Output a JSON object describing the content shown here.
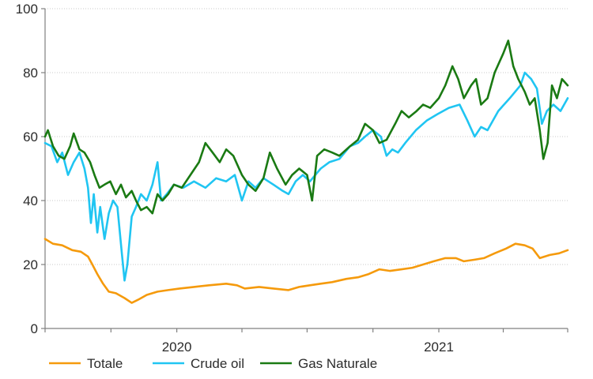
{
  "chart_data": {
    "type": "line",
    "title": "",
    "xlabel": "",
    "ylabel": "",
    "ylim": [
      0,
      100
    ],
    "yticks": [
      0,
      20,
      40,
      60,
      80,
      100
    ],
    "xlim": [
      "2019-07-01",
      "2021-06-30"
    ],
    "x_tick_labels": [
      {
        "label": "2020",
        "date": "2020-01-01"
      },
      {
        "label": "2021",
        "date": "2021-01-01"
      }
    ],
    "x_tick_marks": [
      "2019-07-01",
      "2019-10-01",
      "2020-01-01",
      "2020-04-01",
      "2020-07-01",
      "2020-10-01",
      "2021-01-01",
      "2021-04-01",
      "2021-06-30"
    ],
    "grid": {
      "horizontal": true,
      "vertical": false,
      "style": "dotted"
    },
    "legend": {
      "position": "bottom-left"
    },
    "series": [
      {
        "name": "Totale",
        "color": "#f59a0c",
        "points": [
          [
            "2019-07-01",
            28
          ],
          [
            "2019-07-12",
            26.5
          ],
          [
            "2019-07-25",
            26
          ],
          [
            "2019-08-08",
            24.5
          ],
          [
            "2019-08-20",
            24
          ],
          [
            "2019-08-30",
            22.5
          ],
          [
            "2019-09-05",
            20
          ],
          [
            "2019-09-12",
            17
          ],
          [
            "2019-09-20",
            14
          ],
          [
            "2019-09-28",
            11.5
          ],
          [
            "2019-10-08",
            11
          ],
          [
            "2019-10-20",
            9.5
          ],
          [
            "2019-10-30",
            8
          ],
          [
            "2019-11-08",
            9
          ],
          [
            "2019-11-20",
            10.5
          ],
          [
            "2019-12-05",
            11.5
          ],
          [
            "2019-12-20",
            12
          ],
          [
            "2020-01-05",
            12.5
          ],
          [
            "2020-01-25",
            13
          ],
          [
            "2020-02-15",
            13.5
          ],
          [
            "2020-03-10",
            14
          ],
          [
            "2020-03-25",
            13.5
          ],
          [
            "2020-04-05",
            12.5
          ],
          [
            "2020-04-25",
            13
          ],
          [
            "2020-05-15",
            12.5
          ],
          [
            "2020-06-05",
            12
          ],
          [
            "2020-06-20",
            13
          ],
          [
            "2020-07-05",
            13.5
          ],
          [
            "2020-07-20",
            14
          ],
          [
            "2020-08-05",
            14.5
          ],
          [
            "2020-08-25",
            15.5
          ],
          [
            "2020-09-10",
            16
          ],
          [
            "2020-09-25",
            17
          ],
          [
            "2020-10-10",
            18.5
          ],
          [
            "2020-10-25",
            18
          ],
          [
            "2020-11-10",
            18.5
          ],
          [
            "2020-11-25",
            19
          ],
          [
            "2020-12-10",
            20
          ],
          [
            "2020-12-25",
            21
          ],
          [
            "2021-01-10",
            22
          ],
          [
            "2021-01-25",
            22
          ],
          [
            "2021-02-05",
            21
          ],
          [
            "2021-02-20",
            21.5
          ],
          [
            "2021-03-05",
            22
          ],
          [
            "2021-03-20",
            23.5
          ],
          [
            "2021-04-05",
            25
          ],
          [
            "2021-04-18",
            26.5
          ],
          [
            "2021-05-01",
            26
          ],
          [
            "2021-05-12",
            25
          ],
          [
            "2021-05-22",
            22
          ],
          [
            "2021-06-05",
            23
          ],
          [
            "2021-06-18",
            23.5
          ],
          [
            "2021-06-30",
            24.5
          ]
        ]
      },
      {
        "name": "Crude oil",
        "color": "#20c5f2",
        "points": [
          [
            "2019-07-01",
            58
          ],
          [
            "2019-07-10",
            57
          ],
          [
            "2019-07-18",
            52
          ],
          [
            "2019-07-25",
            55
          ],
          [
            "2019-08-02",
            48
          ],
          [
            "2019-08-10",
            52
          ],
          [
            "2019-08-18",
            55
          ],
          [
            "2019-08-25",
            50
          ],
          [
            "2019-08-30",
            44
          ],
          [
            "2019-09-03",
            33
          ],
          [
            "2019-09-07",
            42
          ],
          [
            "2019-09-12",
            30
          ],
          [
            "2019-09-16",
            38
          ],
          [
            "2019-09-22",
            28
          ],
          [
            "2019-09-28",
            36
          ],
          [
            "2019-10-04",
            40
          ],
          [
            "2019-10-10",
            38
          ],
          [
            "2019-10-16",
            24
          ],
          [
            "2019-10-20",
            15
          ],
          [
            "2019-10-24",
            20
          ],
          [
            "2019-10-30",
            35
          ],
          [
            "2019-11-05",
            38
          ],
          [
            "2019-11-12",
            42
          ],
          [
            "2019-11-20",
            40
          ],
          [
            "2019-11-28",
            45
          ],
          [
            "2019-12-05",
            52
          ],
          [
            "2019-12-10",
            40
          ],
          [
            "2019-12-18",
            42
          ],
          [
            "2019-12-28",
            45
          ],
          [
            "2020-01-10",
            44
          ],
          [
            "2020-01-25",
            46
          ],
          [
            "2020-02-10",
            44
          ],
          [
            "2020-02-25",
            47
          ],
          [
            "2020-03-10",
            46
          ],
          [
            "2020-03-22",
            48
          ],
          [
            "2020-04-01",
            40
          ],
          [
            "2020-04-10",
            46
          ],
          [
            "2020-04-20",
            44
          ],
          [
            "2020-05-01",
            47
          ],
          [
            "2020-05-15",
            45
          ],
          [
            "2020-05-28",
            43
          ],
          [
            "2020-06-05",
            42
          ],
          [
            "2020-06-15",
            46
          ],
          [
            "2020-06-25",
            48
          ],
          [
            "2020-07-05",
            46
          ],
          [
            "2020-07-20",
            50
          ],
          [
            "2020-08-01",
            52
          ],
          [
            "2020-08-15",
            53
          ],
          [
            "2020-08-30",
            57
          ],
          [
            "2020-09-10",
            58
          ],
          [
            "2020-09-20",
            60
          ],
          [
            "2020-10-01",
            62
          ],
          [
            "2020-10-12",
            60
          ],
          [
            "2020-10-20",
            54
          ],
          [
            "2020-10-28",
            56
          ],
          [
            "2020-11-05",
            55
          ],
          [
            "2020-11-15",
            58
          ],
          [
            "2020-11-30",
            62
          ],
          [
            "2020-12-15",
            65
          ],
          [
            "2020-12-30",
            67
          ],
          [
            "2021-01-15",
            69
          ],
          [
            "2021-01-30",
            70
          ],
          [
            "2021-02-10",
            65
          ],
          [
            "2021-02-20",
            60
          ],
          [
            "2021-03-01",
            63
          ],
          [
            "2021-03-10",
            62
          ],
          [
            "2021-03-25",
            68
          ],
          [
            "2021-04-10",
            72
          ],
          [
            "2021-04-25",
            76
          ],
          [
            "2021-05-01",
            80
          ],
          [
            "2021-05-10",
            78
          ],
          [
            "2021-05-18",
            75
          ],
          [
            "2021-05-25",
            64
          ],
          [
            "2021-06-01",
            68
          ],
          [
            "2021-06-10",
            70
          ],
          [
            "2021-06-20",
            68
          ],
          [
            "2021-06-30",
            72
          ]
        ]
      },
      {
        "name": "Gas Naturale",
        "color": "#1a7a13",
        "points": [
          [
            "2019-07-01",
            60
          ],
          [
            "2019-07-05",
            62
          ],
          [
            "2019-07-12",
            57
          ],
          [
            "2019-07-20",
            54
          ],
          [
            "2019-07-28",
            53
          ],
          [
            "2019-08-05",
            57
          ],
          [
            "2019-08-10",
            61
          ],
          [
            "2019-08-18",
            56
          ],
          [
            "2019-08-25",
            55
          ],
          [
            "2019-09-02",
            52
          ],
          [
            "2019-09-08",
            48
          ],
          [
            "2019-09-15",
            44
          ],
          [
            "2019-09-22",
            45
          ],
          [
            "2019-09-30",
            46
          ],
          [
            "2019-10-08",
            42
          ],
          [
            "2019-10-15",
            45
          ],
          [
            "2019-10-22",
            41
          ],
          [
            "2019-10-30",
            43
          ],
          [
            "2019-11-05",
            40
          ],
          [
            "2019-11-12",
            37
          ],
          [
            "2019-11-20",
            38
          ],
          [
            "2019-11-28",
            36
          ],
          [
            "2019-12-05",
            42
          ],
          [
            "2019-12-12",
            40
          ],
          [
            "2019-12-20",
            42
          ],
          [
            "2019-12-28",
            45
          ],
          [
            "2020-01-08",
            44
          ],
          [
            "2020-01-20",
            48
          ],
          [
            "2020-02-01",
            52
          ],
          [
            "2020-02-10",
            58
          ],
          [
            "2020-02-20",
            55
          ],
          [
            "2020-03-01",
            52
          ],
          [
            "2020-03-10",
            56
          ],
          [
            "2020-03-20",
            54
          ],
          [
            "2020-04-01",
            48
          ],
          [
            "2020-04-10",
            45
          ],
          [
            "2020-04-20",
            43
          ],
          [
            "2020-05-01",
            47
          ],
          [
            "2020-05-10",
            55
          ],
          [
            "2020-05-20",
            50
          ],
          [
            "2020-06-01",
            45
          ],
          [
            "2020-06-10",
            48
          ],
          [
            "2020-06-20",
            50
          ],
          [
            "2020-07-01",
            48
          ],
          [
            "2020-07-08",
            40
          ],
          [
            "2020-07-15",
            54
          ],
          [
            "2020-07-25",
            56
          ],
          [
            "2020-08-05",
            55
          ],
          [
            "2020-08-15",
            54
          ],
          [
            "2020-08-30",
            57
          ],
          [
            "2020-09-10",
            59
          ],
          [
            "2020-09-20",
            64
          ],
          [
            "2020-10-01",
            62
          ],
          [
            "2020-10-10",
            58
          ],
          [
            "2020-10-20",
            59
          ],
          [
            "2020-11-01",
            64
          ],
          [
            "2020-11-10",
            68
          ],
          [
            "2020-11-20",
            66
          ],
          [
            "2020-12-01",
            68
          ],
          [
            "2020-12-10",
            70
          ],
          [
            "2020-12-20",
            69
          ],
          [
            "2021-01-01",
            72
          ],
          [
            "2021-01-10",
            76
          ],
          [
            "2021-01-20",
            82
          ],
          [
            "2021-01-28",
            78
          ],
          [
            "2021-02-05",
            72
          ],
          [
            "2021-02-15",
            76
          ],
          [
            "2021-02-22",
            78
          ],
          [
            "2021-03-01",
            70
          ],
          [
            "2021-03-10",
            72
          ],
          [
            "2021-03-20",
            80
          ],
          [
            "2021-04-01",
            86
          ],
          [
            "2021-04-08",
            90
          ],
          [
            "2021-04-15",
            82
          ],
          [
            "2021-04-22",
            78
          ],
          [
            "2021-05-01",
            74
          ],
          [
            "2021-05-08",
            70
          ],
          [
            "2021-05-15",
            72
          ],
          [
            "2021-05-22",
            62
          ],
          [
            "2021-05-27",
            53
          ],
          [
            "2021-06-02",
            58
          ],
          [
            "2021-06-08",
            76
          ],
          [
            "2021-06-15",
            72
          ],
          [
            "2021-06-22",
            78
          ],
          [
            "2021-06-30",
            76
          ]
        ]
      }
    ]
  }
}
